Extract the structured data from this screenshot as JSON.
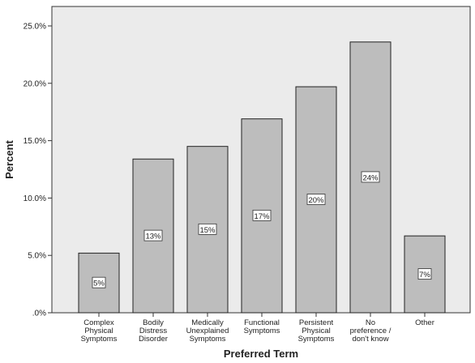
{
  "chart_data": {
    "type": "bar",
    "xlabel": "Preferred Term",
    "ylabel": "Percent",
    "ylim": [
      0,
      25
    ],
    "yticks": [
      ".0%",
      "5.0%",
      "10.0%",
      "15.0%",
      "20.0%",
      "25.0%"
    ],
    "grid": false,
    "categories": [
      [
        "Complex",
        "Physical",
        "Symptoms"
      ],
      [
        "Bodily",
        "Distress",
        "Disorder"
      ],
      [
        "Medically",
        "Unexplained",
        "Symptoms"
      ],
      [
        "Functional",
        "Symptoms"
      ],
      [
        "Persistent",
        "Physical",
        "Symptoms"
      ],
      [
        "No",
        "preference /",
        "don't know"
      ],
      [
        "Other"
      ]
    ],
    "values": [
      5.2,
      13.4,
      14.5,
      16.9,
      19.7,
      23.6,
      6.7
    ],
    "data_labels": [
      "5%",
      "13%",
      "15%",
      "17%",
      "20%",
      "24%",
      "7%"
    ],
    "colors": {
      "plot_bg": "#ebebeb",
      "bar": "#bdbdbd",
      "bar_stroke": "#222222",
      "label_bg": "#ffffff"
    }
  }
}
